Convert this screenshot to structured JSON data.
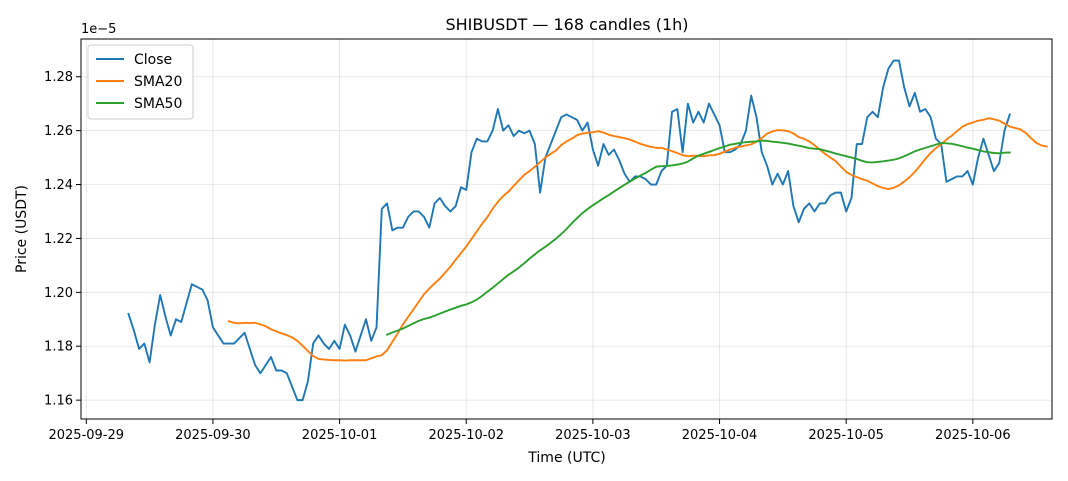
{
  "chart_data": {
    "type": "line",
    "title": "SHIBUSDT — 168 candles (1h)",
    "xlabel": "Time (UTC)",
    "ylabel": "Price (USDT)",
    "y_multiplier_label": "1e−5",
    "x_is_time": true,
    "x_start": "2025-09-29 08:00",
    "x_interval_hours": 1,
    "xlim": [
      "2025-09-28 23:00",
      "2025-10-06 15:00"
    ],
    "ylim": [
      1.153,
      1.294
    ],
    "x_ticks": [
      "2025-09-29",
      "2025-09-30",
      "2025-10-01",
      "2025-10-02",
      "2025-10-03",
      "2025-10-04",
      "2025-10-05",
      "2025-10-06"
    ],
    "y_ticks": [
      "1.16",
      "1.18",
      "1.20",
      "1.22",
      "1.24",
      "1.26",
      "1.28"
    ],
    "grid": true,
    "legend_position": "top-left",
    "series": [
      {
        "name": "Close",
        "color": "#1f77b4",
        "values": [
          1.192,
          1.186,
          1.179,
          1.181,
          1.174,
          1.188,
          1.199,
          1.191,
          1.184,
          1.19,
          1.189,
          1.196,
          1.203,
          1.202,
          1.201,
          1.197,
          1.187,
          1.184,
          1.181,
          1.181,
          1.181,
          1.183,
          1.185,
          1.179,
          1.173,
          1.17,
          1.173,
          1.176,
          1.171,
          1.171,
          1.17,
          1.165,
          1.16,
          1.16,
          1.167,
          1.181,
          1.184,
          1.181,
          1.179,
          1.182,
          1.179,
          1.188,
          1.184,
          1.178,
          1.184,
          1.19,
          1.182,
          1.187,
          1.231,
          1.233,
          1.223,
          1.224,
          1.224,
          1.228,
          1.23,
          1.23,
          1.228,
          1.224,
          1.233,
          1.235,
          1.232,
          1.23,
          1.232,
          1.239,
          1.238,
          1.252,
          1.257,
          1.256,
          1.256,
          1.26,
          1.268,
          1.26,
          1.262,
          1.258,
          1.26,
          1.259,
          1.26,
          1.255,
          1.237,
          1.25,
          1.255,
          1.26,
          1.265,
          1.266,
          1.265,
          1.264,
          1.26,
          1.263,
          1.253,
          1.247,
          1.255,
          1.251,
          1.253,
          1.249,
          1.244,
          1.241,
          1.243,
          1.243,
          1.242,
          1.24,
          1.24,
          1.245,
          1.247,
          1.267,
          1.268,
          1.252,
          1.27,
          1.263,
          1.267,
          1.263,
          1.27,
          1.266,
          1.262,
          1.252,
          1.252,
          1.253,
          1.255,
          1.26,
          1.273,
          1.265,
          1.252,
          1.247,
          1.24,
          1.244,
          1.24,
          1.245,
          1.232,
          1.226,
          1.231,
          1.233,
          1.23,
          1.233,
          1.233,
          1.236,
          1.237,
          1.237,
          1.23,
          1.235,
          1.255,
          1.255,
          1.265,
          1.267,
          1.265,
          1.276,
          1.283,
          1.286,
          1.286,
          1.276,
          1.269,
          1.274,
          1.267,
          1.268,
          1.265,
          1.257,
          1.255,
          1.241,
          1.242,
          1.243,
          1.243,
          1.245,
          1.24,
          1.25,
          1.257,
          1.251,
          1.245,
          1.248,
          1.26,
          1.266
        ]
      },
      {
        "name": "SMA20",
        "color": "#ff7f0e",
        "start_index": 19,
        "values": [
          1.1893,
          1.1887,
          1.1885,
          1.1887,
          1.1886,
          1.1887,
          1.1881,
          1.1874,
          1.1863,
          1.1855,
          1.1848,
          1.1841,
          1.1833,
          1.182,
          1.1802,
          1.1782,
          1.1764,
          1.1753,
          1.1751,
          1.1749,
          1.1748,
          1.1748,
          1.1747,
          1.1748,
          1.1748,
          1.1748,
          1.1748,
          1.1755,
          1.1762,
          1.1767,
          1.1785,
          1.1816,
          1.1847,
          1.1881,
          1.1909,
          1.1937,
          1.1965,
          1.1993,
          1.2014,
          1.2033,
          1.2051,
          1.2073,
          1.2095,
          1.2121,
          1.2145,
          1.217,
          1.2198,
          1.2226,
          1.2254,
          1.2279,
          1.231,
          1.2336,
          1.2357,
          1.2374,
          1.2395,
          1.2416,
          1.2436,
          1.245,
          1.2466,
          1.2483,
          1.25,
          1.2514,
          1.2526,
          1.2546,
          1.256,
          1.257,
          1.2583,
          1.2589,
          1.2592,
          1.2594,
          1.2598,
          1.2593,
          1.2585,
          1.258,
          1.2576,
          1.2572,
          1.2567,
          1.2559,
          1.2551,
          1.2545,
          1.254,
          1.2536,
          1.2536,
          1.253,
          1.2524,
          1.2517,
          1.2509,
          1.2505,
          1.2507,
          1.2506,
          1.2505,
          1.2508,
          1.2509,
          1.2514,
          1.2522,
          1.253,
          1.2537,
          1.2541,
          1.2545,
          1.2549,
          1.2559,
          1.2572,
          1.2589,
          1.2597,
          1.2602,
          1.2601,
          1.2598,
          1.259,
          1.2576,
          1.257,
          1.256,
          1.2546,
          1.253,
          1.2514,
          1.25,
          1.2487,
          1.2467,
          1.2447,
          1.2436,
          1.2428,
          1.242,
          1.2414,
          1.2404,
          1.2394,
          1.2387,
          1.2383,
          1.2388,
          1.2397,
          1.2411,
          1.2427,
          1.2447,
          1.247,
          1.2495,
          1.2517,
          1.2535,
          1.2549,
          1.2567,
          1.2581,
          1.2598,
          1.2614,
          1.2624,
          1.263,
          1.2637,
          1.264,
          1.2646,
          1.2642,
          1.2637,
          1.2626,
          1.2615,
          1.261,
          1.2605,
          1.2592,
          1.2573,
          1.2555,
          1.2545,
          1.2541
        ]
      },
      {
        "name": "SMA50",
        "color": "#2ca02c",
        "start_index": 49,
        "values": [
          1.1843,
          1.1851,
          1.1858,
          1.1866,
          1.1875,
          1.1885,
          1.1894,
          1.1901,
          1.1906,
          1.1913,
          1.1921,
          1.1929,
          1.1936,
          1.1943,
          1.195,
          1.1955,
          1.1963,
          1.1973,
          1.1987,
          1.2002,
          1.2017,
          1.2033,
          1.2049,
          1.2065,
          1.2078,
          1.2092,
          1.2108,
          1.2125,
          1.2141,
          1.2156,
          1.2169,
          1.2184,
          1.2199,
          1.2216,
          1.2235,
          1.2256,
          1.2275,
          1.2294,
          1.2309,
          1.2323,
          1.2336,
          1.2349,
          1.2361,
          1.2374,
          1.2387,
          1.2399,
          1.2411,
          1.2422,
          1.2433,
          1.2443,
          1.2455,
          1.2466,
          1.2468,
          1.2469,
          1.2471,
          1.2474,
          1.2478,
          1.2485,
          1.2497,
          1.2507,
          1.2514,
          1.2521,
          1.2528,
          1.2535,
          1.2541,
          1.2548,
          1.2551,
          1.2555,
          1.2557,
          1.2559,
          1.256,
          1.2563,
          1.2562,
          1.2559,
          1.2557,
          1.2555,
          1.2552,
          1.2548,
          1.2544,
          1.254,
          1.2535,
          1.2533,
          1.2531,
          1.2526,
          1.2521,
          1.2515,
          1.251,
          1.2505,
          1.25,
          1.2495,
          1.2488,
          1.2483,
          1.2482,
          1.2484,
          1.2486,
          1.2489,
          1.2492,
          1.2497,
          1.2505,
          1.2514,
          1.2523,
          1.253,
          1.2536,
          1.2542,
          1.2548,
          1.2554,
          1.2553,
          1.2551,
          1.2547,
          1.2542,
          1.2537,
          1.2533,
          1.2528,
          1.2523,
          1.252,
          1.2517,
          1.2516,
          1.2518,
          1.2519
        ]
      }
    ]
  }
}
